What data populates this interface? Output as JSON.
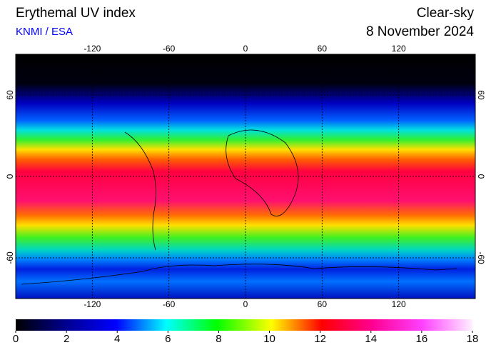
{
  "header": {
    "title": "Erythemal UV index",
    "source": "KNMI / ESA",
    "condition": "Clear-sky",
    "date": "8 November 2024"
  },
  "map": {
    "xlim": [
      -180,
      180
    ],
    "ylim": [
      -90,
      90
    ],
    "lon_ticks": [
      -120,
      -60,
      0,
      60,
      120
    ],
    "lat_ticks": [
      60,
      0,
      -60
    ]
  },
  "colorbar": {
    "lim": [
      0,
      18
    ],
    "ticks": [
      0,
      2,
      4,
      6,
      8,
      10,
      12,
      14,
      16,
      18
    ]
  }
}
